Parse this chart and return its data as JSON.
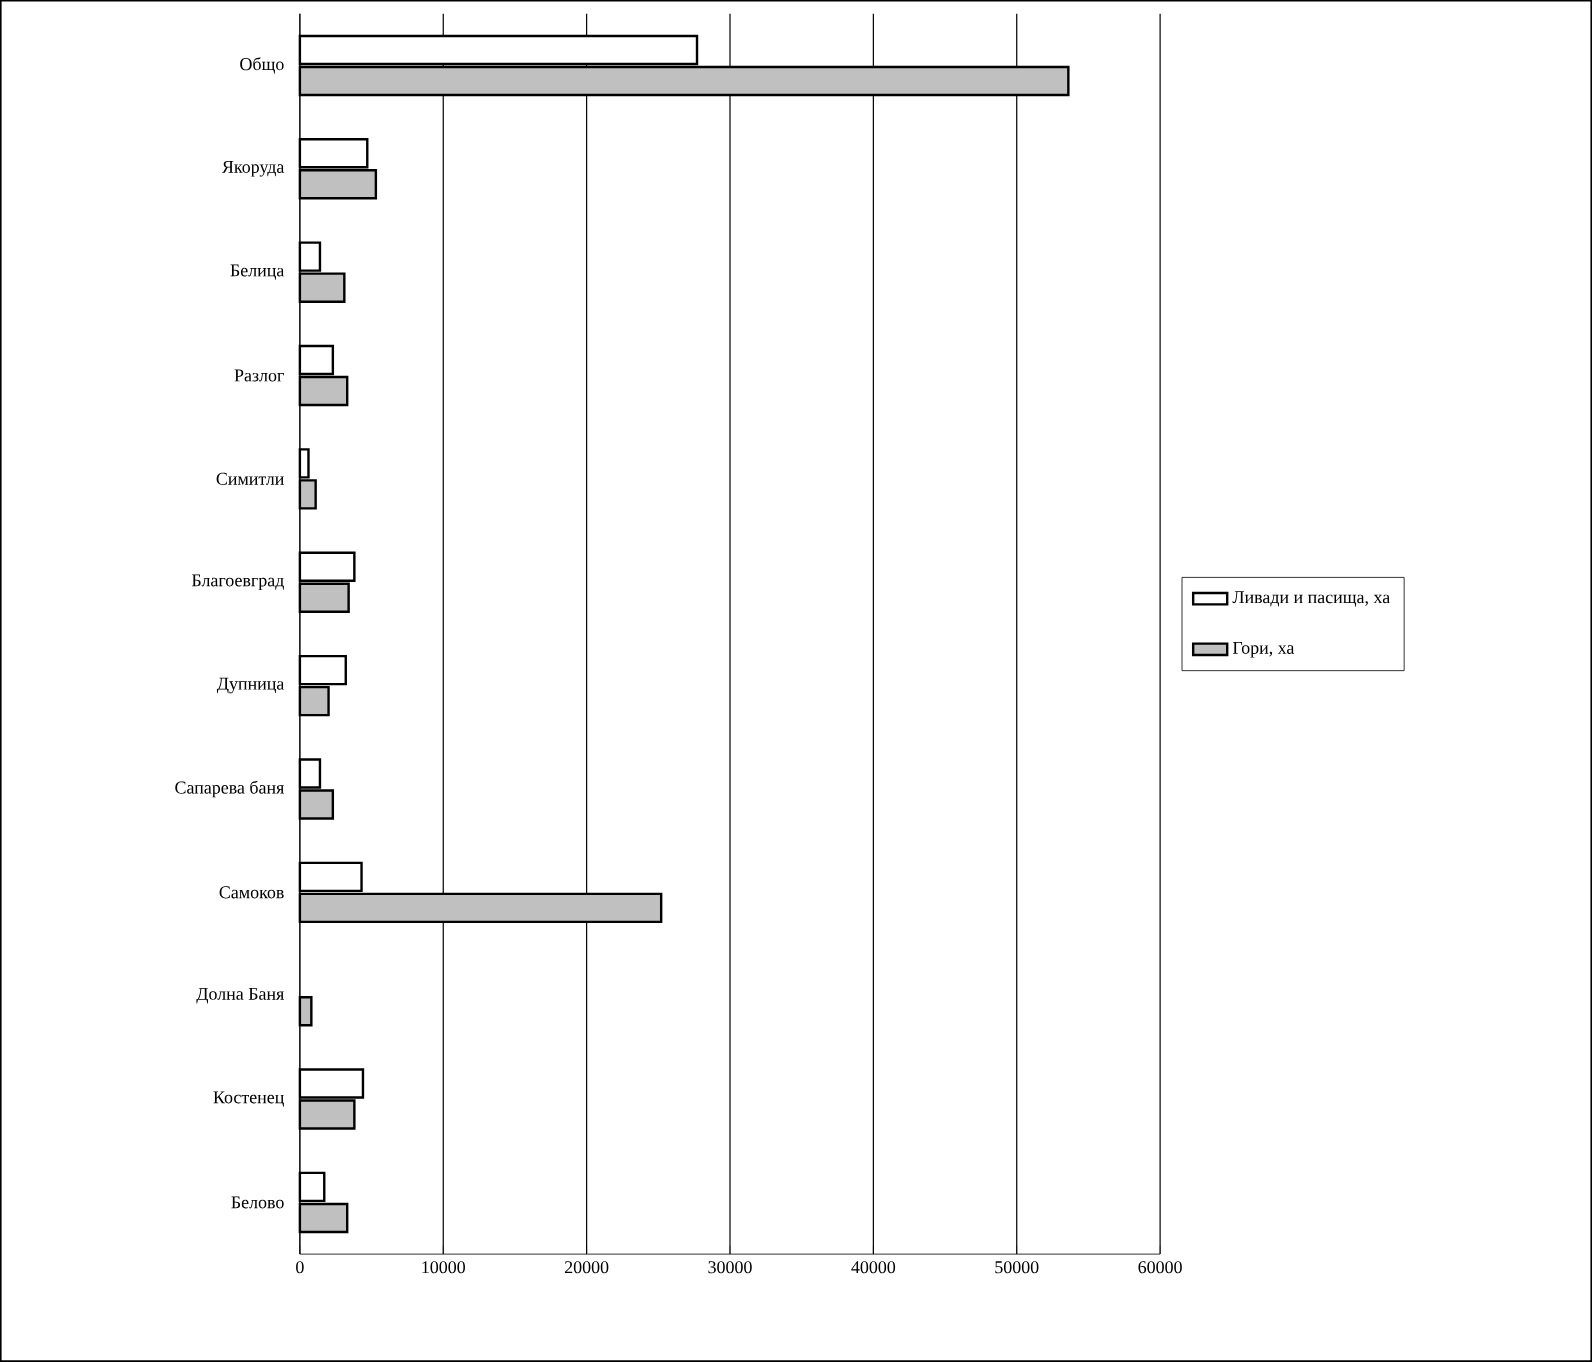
{
  "chart_data": {
    "type": "bar",
    "orientation": "horizontal",
    "categories": [
      "Общо",
      "Якоруда",
      "Белица",
      "Разлог",
      "Симитли",
      "Благоевград",
      "Дупница",
      "Сапарева баня",
      "Самоков",
      "Долна Баня",
      "Костенец",
      "Белово"
    ],
    "series": [
      {
        "name": "Ливади и пасища, ха",
        "color": "#ffffff",
        "values": [
          27700,
          4700,
          1400,
          2300,
          600,
          3800,
          3200,
          1400,
          4300,
          null,
          4400,
          1700
        ]
      },
      {
        "name": "Гори, ха",
        "color": "#c0c0c0",
        "values": [
          53600,
          5300,
          3100,
          3300,
          1100,
          3400,
          2000,
          2300,
          25200,
          800,
          3800,
          3300
        ]
      }
    ],
    "xlim": [
      0,
      60000
    ],
    "xticks": [
      0,
      10000,
      20000,
      30000,
      40000,
      50000,
      60000
    ],
    "grid": "x",
    "legend": "right"
  }
}
